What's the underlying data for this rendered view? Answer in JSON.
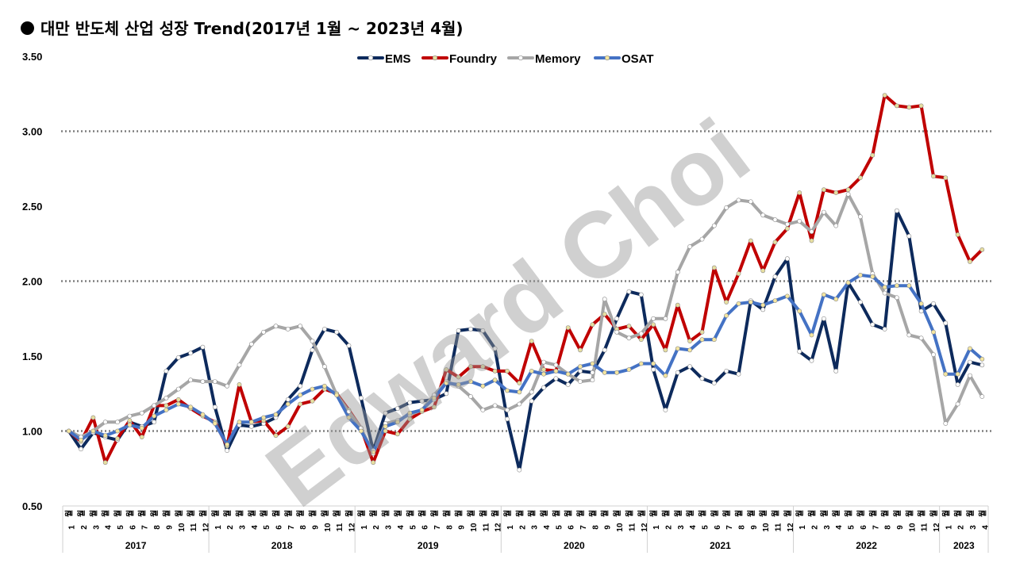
{
  "title": "대만 반도체 산업 성장 Trend(2017년 1월 ~ 2023년 4월)",
  "watermark": "Edward Choi",
  "chart_data": {
    "type": "line",
    "title": "대만 반도체 산업 성장 Trend(2017년 1월 ~ 2023년 4월)",
    "ylim": [
      0.5,
      3.5
    ],
    "yticks": [
      "0.50",
      "1.00",
      "1.50",
      "2.00",
      "2.50",
      "3.00",
      "3.50"
    ],
    "grid": "dotted horizontal lines at 1.00, 2.00, 3.00",
    "legend_position": "top-center",
    "month_unit": "월",
    "years": [
      {
        "label": "2017",
        "months": 12
      },
      {
        "label": "2018",
        "months": 12
      },
      {
        "label": "2019",
        "months": 12
      },
      {
        "label": "2020",
        "months": 12
      },
      {
        "label": "2021",
        "months": 12
      },
      {
        "label": "2022",
        "months": 12
      },
      {
        "label": "2023",
        "months": 4
      }
    ],
    "series": [
      {
        "name": "EMS",
        "color": "#0d2a5c",
        "marker": "#ffffff",
        "values": [
          1.0,
          0.88,
          0.99,
          0.96,
          0.94,
          1.06,
          1.03,
          1.06,
          1.4,
          1.49,
          1.52,
          1.56,
          1.16,
          0.87,
          1.04,
          1.03,
          1.05,
          1.09,
          1.21,
          1.3,
          1.54,
          1.68,
          1.66,
          1.57,
          1.22,
          0.87,
          1.12,
          1.15,
          1.19,
          1.2,
          1.21,
          1.25,
          1.67,
          1.68,
          1.67,
          1.55,
          1.08,
          0.74,
          1.2,
          1.29,
          1.35,
          1.31,
          1.4,
          1.39,
          1.54,
          1.75,
          1.93,
          1.91,
          1.41,
          1.14,
          1.39,
          1.43,
          1.35,
          1.32,
          1.4,
          1.38,
          1.87,
          1.81,
          2.03,
          2.15,
          1.53,
          1.47,
          1.75,
          1.4,
          1.99,
          1.86,
          1.71,
          1.68,
          2.47,
          2.3,
          1.8,
          1.85,
          1.72,
          1.31,
          1.46,
          1.44
        ]
      },
      {
        "name": "Foundry",
        "color": "#c00000",
        "marker": "#e8dfa0",
        "values": [
          1.0,
          0.93,
          1.09,
          0.79,
          0.95,
          1.07,
          0.96,
          1.17,
          1.17,
          1.21,
          1.15,
          1.1,
          1.06,
          0.9,
          1.31,
          1.06,
          1.07,
          0.97,
          1.03,
          1.18,
          1.2,
          1.28,
          1.25,
          1.14,
          1.02,
          0.79,
          1.0,
          0.98,
          1.08,
          1.13,
          1.16,
          1.41,
          1.36,
          1.43,
          1.43,
          1.4,
          1.4,
          1.32,
          1.6,
          1.41,
          1.4,
          1.69,
          1.54,
          1.71,
          1.78,
          1.68,
          1.7,
          1.61,
          1.71,
          1.54,
          1.84,
          1.6,
          1.66,
          2.09,
          1.86,
          2.05,
          2.27,
          2.07,
          2.26,
          2.35,
          2.59,
          2.27,
          2.61,
          2.59,
          2.61,
          2.69,
          2.84,
          3.24,
          3.17,
          3.16,
          3.17,
          2.7,
          2.69,
          2.31,
          2.13,
          2.21
        ]
      },
      {
        "name": "Memory",
        "color": "#a6a6a6",
        "marker": "#ffffff",
        "values": [
          1.0,
          0.96,
          1.0,
          1.06,
          1.06,
          1.1,
          1.12,
          1.17,
          1.22,
          1.28,
          1.34,
          1.33,
          1.33,
          1.3,
          1.44,
          1.58,
          1.66,
          1.7,
          1.68,
          1.7,
          1.6,
          1.43,
          1.24,
          1.13,
          1.02,
          0.85,
          1.05,
          1.07,
          1.11,
          1.14,
          1.24,
          1.33,
          1.3,
          1.23,
          1.14,
          1.17,
          1.14,
          1.18,
          1.26,
          1.46,
          1.44,
          1.38,
          1.33,
          1.34,
          1.88,
          1.66,
          1.62,
          1.65,
          1.75,
          1.75,
          2.06,
          2.23,
          2.28,
          2.37,
          2.49,
          2.54,
          2.53,
          2.44,
          2.41,
          2.38,
          2.4,
          2.33,
          2.46,
          2.37,
          2.58,
          2.43,
          2.05,
          1.92,
          1.89,
          1.64,
          1.62,
          1.51,
          1.05,
          1.18,
          1.37,
          1.23
        ]
      },
      {
        "name": "OSAT",
        "color": "#4472c4",
        "marker": "#f4e6a0",
        "values": [
          1.0,
          0.94,
          1.0,
          0.97,
          1.0,
          1.04,
          1.02,
          1.1,
          1.14,
          1.18,
          1.16,
          1.11,
          1.05,
          0.91,
          1.06,
          1.06,
          1.09,
          1.11,
          1.18,
          1.24,
          1.28,
          1.3,
          1.24,
          1.09,
          1.0,
          0.86,
          1.03,
          1.06,
          1.12,
          1.14,
          1.22,
          1.32,
          1.31,
          1.33,
          1.3,
          1.34,
          1.27,
          1.26,
          1.4,
          1.38,
          1.4,
          1.38,
          1.43,
          1.45,
          1.39,
          1.39,
          1.41,
          1.45,
          1.45,
          1.37,
          1.55,
          1.54,
          1.61,
          1.61,
          1.77,
          1.85,
          1.86,
          1.84,
          1.87,
          1.9,
          1.8,
          1.64,
          1.91,
          1.88,
          1.99,
          2.04,
          2.03,
          1.96,
          1.97,
          1.97,
          1.85,
          1.66,
          1.38,
          1.38,
          1.55,
          1.48
        ]
      }
    ]
  }
}
